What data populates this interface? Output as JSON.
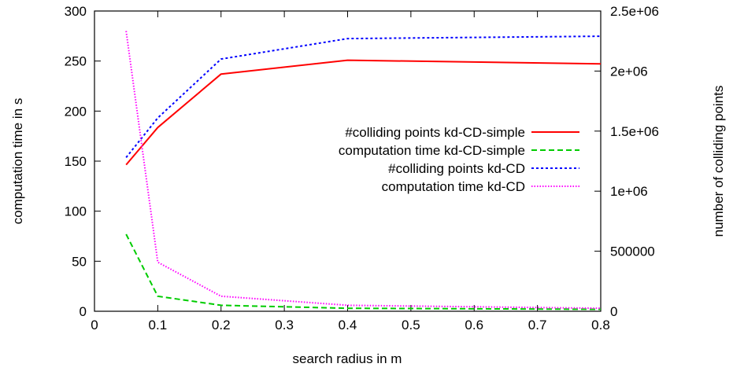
{
  "chart_data": {
    "type": "line",
    "title": "",
    "xlabel": "search radius in m",
    "ylabel": "computation time in s",
    "y2label": "number of colliding points",
    "xlim": [
      0,
      0.8
    ],
    "ylim": [
      0,
      300
    ],
    "y2lim": [
      0,
      2500000
    ],
    "x_ticks": [
      "0",
      "0.1",
      "0.2",
      "0.3",
      "0.4",
      "0.5",
      "0.6",
      "0.7",
      "0.8"
    ],
    "y_ticks": [
      "0",
      "50",
      "100",
      "150",
      "200",
      "250",
      "300"
    ],
    "y2_ticks": [
      "0",
      "500000",
      "1e+06",
      "1.5e+06",
      "2e+06",
      "2.5e+06"
    ],
    "legend_position": "right-middle",
    "grid": false,
    "series": [
      {
        "name": "#colliding points kd-CD-simple",
        "axis": "y2",
        "color": "#ff0000",
        "dash": "solid",
        "x": [
          0.05,
          0.1,
          0.2,
          0.4,
          0.8
        ],
        "values": [
          1220000,
          1530000,
          1975000,
          2090000,
          2060000
        ]
      },
      {
        "name": "computation time kd-CD-simple",
        "axis": "y",
        "color": "#00cc00",
        "dash": "dashed",
        "x": [
          0.05,
          0.1,
          0.2,
          0.4,
          0.8
        ],
        "values": [
          77,
          15,
          6,
          3,
          2
        ]
      },
      {
        "name": "#colliding points kd-CD",
        "axis": "y2",
        "color": "#0000ff",
        "dash": "dotted",
        "x": [
          0.05,
          0.1,
          0.2,
          0.4,
          0.8
        ],
        "values": [
          1280000,
          1610000,
          2100000,
          2270000,
          2290000
        ]
      },
      {
        "name": "computation time kd-CD",
        "axis": "y",
        "color": "#ff00ff",
        "dash": "fine-dotted",
        "x": [
          0.05,
          0.1,
          0.2,
          0.4,
          0.8
        ],
        "values": [
          280,
          49,
          15,
          6,
          3
        ]
      }
    ]
  }
}
